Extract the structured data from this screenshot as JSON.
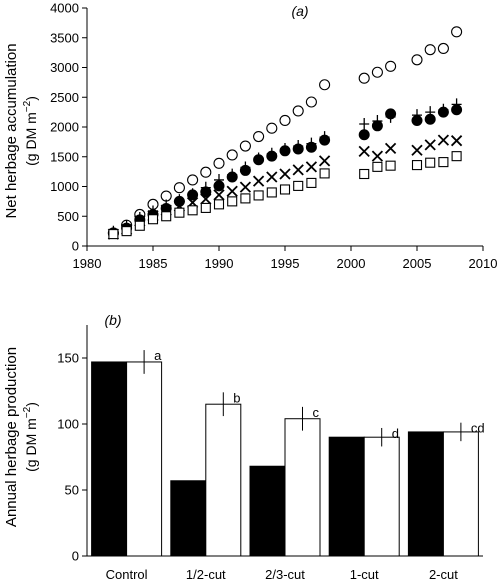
{
  "chart_data": [
    {
      "type": "scatter",
      "panel_label": "(a)",
      "ylabel_line1": "Net herbage accumulation",
      "ylabel_line2_prefix": "(g DM m",
      "ylabel_line2_sup": "−2",
      "ylabel_line2_suffix": ")",
      "xlim": [
        1980,
        2010
      ],
      "ylim": [
        0,
        4000
      ],
      "x_ticks": [
        "1980",
        "1985",
        "1990",
        "1995",
        "2000",
        "2005",
        "2010"
      ],
      "y_ticks": [
        "0",
        "500",
        "1000",
        "1500",
        "2000",
        "2500",
        "3000",
        "3500",
        "4000"
      ],
      "series": [
        {
          "marker": "open-circle",
          "x": [
            1982,
            1983,
            1984,
            1985,
            1986,
            1987,
            1988,
            1989,
            1990,
            1991,
            1992,
            1993,
            1994,
            1995,
            1996,
            1997,
            1998,
            2001,
            2002,
            2003,
            2005,
            2006,
            2007,
            2008
          ],
          "y": [
            220,
            350,
            530,
            700,
            840,
            980,
            1110,
            1240,
            1390,
            1530,
            1680,
            1840,
            1980,
            2110,
            2270,
            2420,
            2710,
            2820,
            2920,
            3020,
            3130,
            3300,
            3320,
            3600
          ]
        },
        {
          "marker": "filled-circle",
          "x": [
            1982,
            1983,
            1984,
            1985,
            1986,
            1987,
            1988,
            1989,
            1990,
            1991,
            1992,
            1993,
            1994,
            1995,
            1996,
            1997,
            1998,
            2001,
            2002,
            2003,
            2005,
            2006,
            2007,
            2008
          ],
          "y": [
            210,
            300,
            440,
            530,
            630,
            750,
            860,
            910,
            1010,
            1160,
            1270,
            1450,
            1510,
            1600,
            1630,
            1660,
            1780,
            1870,
            2020,
            2220,
            2110,
            2130,
            2250,
            2290
          ]
        },
        {
          "marker": "plus",
          "x": [
            1982,
            1983,
            1984,
            1985,
            1986,
            1987,
            1988,
            1989,
            1990,
            1991,
            1992,
            1993,
            1994,
            1995,
            1996,
            1997,
            1998,
            2001,
            2002,
            2003,
            2005,
            2006,
            2007,
            2008
          ],
          "y": [
            240,
            330,
            470,
            580,
            680,
            770,
            870,
            980,
            1110,
            1200,
            1320,
            1470,
            1550,
            1630,
            1680,
            1720,
            1830,
            2050,
            2100,
            2170,
            2200,
            2250,
            2290,
            2380
          ]
        },
        {
          "marker": "cross",
          "x": [
            1982,
            1983,
            1984,
            1985,
            1986,
            1987,
            1988,
            1989,
            1990,
            1991,
            1992,
            1993,
            1994,
            1995,
            1996,
            1997,
            1998,
            2001,
            2002,
            2003,
            2005,
            2006,
            2007,
            2008
          ],
          "y": [
            200,
            280,
            420,
            510,
            600,
            670,
            730,
            790,
            860,
            920,
            990,
            1090,
            1160,
            1210,
            1280,
            1330,
            1430,
            1590,
            1510,
            1640,
            1610,
            1700,
            1780,
            1770
          ]
        },
        {
          "marker": "open-square",
          "x": [
            1982,
            1983,
            1984,
            1985,
            1986,
            1987,
            1988,
            1989,
            1990,
            1991,
            1992,
            1993,
            1994,
            1995,
            1996,
            1997,
            1998,
            2001,
            2002,
            2003,
            2005,
            2006,
            2007,
            2008
          ],
          "y": [
            200,
            250,
            340,
            450,
            500,
            560,
            600,
            640,
            700,
            750,
            800,
            850,
            900,
            950,
            1010,
            1060,
            1220,
            1210,
            1330,
            1350,
            1360,
            1400,
            1410,
            1510
          ]
        }
      ]
    },
    {
      "type": "bar",
      "panel_label": "(b)",
      "ylabel_line1": "Annual herbage production",
      "ylabel_line2_prefix": "(g DM m",
      "ylabel_line2_sup": "−2",
      "ylabel_line2_suffix": ")",
      "ylim": [
        0,
        175
      ],
      "y_ticks": [
        "0",
        "50",
        "100",
        "150"
      ],
      "categories": [
        "Control",
        "1/2-cut",
        "2/3-cut",
        "1-cut",
        "2-cut"
      ],
      "series": [
        {
          "fill": "#000000",
          "values": [
            147,
            57,
            68,
            90,
            94
          ]
        },
        {
          "fill": "#ffffff",
          "values": [
            147,
            115,
            104,
            90,
            94
          ],
          "error": [
            9,
            9,
            9,
            7,
            7
          ]
        }
      ],
      "significance_letters": [
        "a",
        "b",
        "c",
        "d",
        "cd"
      ]
    }
  ]
}
